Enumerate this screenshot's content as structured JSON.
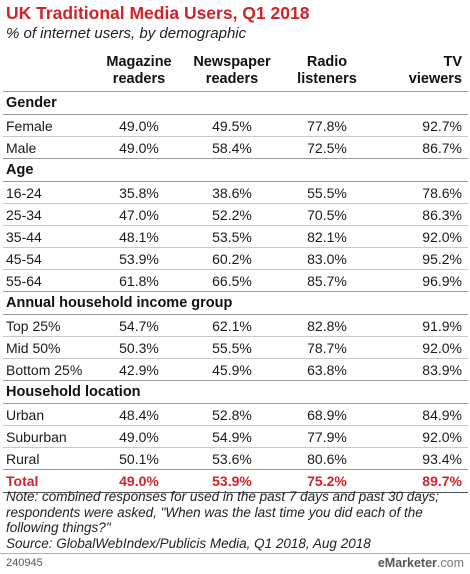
{
  "title": "UK Traditional Media Users, Q1 2018",
  "subtitle": "% of internet users, by demographic",
  "chart_data": {
    "type": "table",
    "columns": [
      "",
      "Magazine readers",
      "Newspaper readers",
      "Radio listeners",
      "TV viewers"
    ],
    "column_headers": [
      {
        "line1": "Magazine",
        "line2": "readers"
      },
      {
        "line1": "Newspaper",
        "line2": "readers"
      },
      {
        "line1": "Radio",
        "line2": "listeners"
      },
      {
        "line1": "TV",
        "line2": "viewers"
      }
    ],
    "sections": [
      {
        "name": "Gender",
        "rows": [
          {
            "label": "Female",
            "values": [
              "49.0%",
              "49.5%",
              "77.8%",
              "92.7%"
            ]
          },
          {
            "label": "Male",
            "values": [
              "49.0%",
              "58.4%",
              "72.5%",
              "86.7%"
            ]
          }
        ]
      },
      {
        "name": "Age",
        "rows": [
          {
            "label": "16-24",
            "values": [
              "35.8%",
              "38.6%",
              "55.5%",
              "78.6%"
            ]
          },
          {
            "label": "25-34",
            "values": [
              "47.0%",
              "52.2%",
              "70.5%",
              "86.3%"
            ]
          },
          {
            "label": "35-44",
            "values": [
              "48.1%",
              "53.5%",
              "82.1%",
              "92.0%"
            ]
          },
          {
            "label": "45-54",
            "values": [
              "53.9%",
              "60.2%",
              "83.0%",
              "95.2%"
            ]
          },
          {
            "label": "55-64",
            "values": [
              "61.8%",
              "66.5%",
              "85.7%",
              "96.9%"
            ]
          }
        ]
      },
      {
        "name": "Annual household income group",
        "rows": [
          {
            "label": "Top 25%",
            "values": [
              "54.7%",
              "62.1%",
              "82.8%",
              "91.9%"
            ]
          },
          {
            "label": "Mid 50%",
            "values": [
              "50.3%",
              "55.5%",
              "78.7%",
              "92.0%"
            ]
          },
          {
            "label": "Bottom 25%",
            "values": [
              "42.9%",
              "45.9%",
              "63.8%",
              "83.9%"
            ]
          }
        ]
      },
      {
        "name": "Household location",
        "rows": [
          {
            "label": "Urban",
            "values": [
              "48.4%",
              "52.8%",
              "68.9%",
              "84.9%"
            ]
          },
          {
            "label": "Suburban",
            "values": [
              "49.0%",
              "54.9%",
              "77.9%",
              "92.0%"
            ]
          },
          {
            "label": "Rural",
            "values": [
              "50.1%",
              "53.6%",
              "80.6%",
              "93.4%"
            ]
          }
        ]
      }
    ],
    "total": {
      "label": "Total",
      "values": [
        "49.0%",
        "53.9%",
        "75.2%",
        "89.7%"
      ]
    }
  },
  "note": "Note: combined responses for used in the past 7 days and past 30 days; respondents were asked, \"When was the last time you did each of the following things?\"",
  "source": "Source: GlobalWebIndex/Publicis Media, Q1 2018, Aug 2018",
  "chart_id": "240945",
  "logo": {
    "part1": "e",
    "part2": "Marketer",
    "part3": ".com"
  },
  "colors": {
    "accent": "#d2232a",
    "text": "#1a1a1a",
    "rule": "#9a9a9a"
  }
}
